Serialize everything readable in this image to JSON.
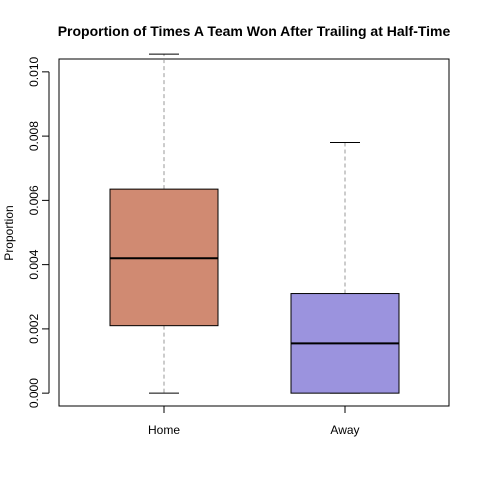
{
  "chart_data": {
    "type": "box",
    "title": "Proportion of Times A Team Won After Trailing at Half-Time",
    "xlabel": "",
    "ylabel": "Proportion",
    "ylim": [
      -0.0004,
      0.0104
    ],
    "yticks": [
      "0.000",
      "0.002",
      "0.004",
      "0.006",
      "0.008",
      "0.010"
    ],
    "grid": false,
    "categories": [
      "Home",
      "Away"
    ],
    "boxes": [
      {
        "category": "Home",
        "min": 0.0,
        "q1": 0.0021,
        "median": 0.0042,
        "q3": 0.00635,
        "max": 0.01055,
        "color": "#D08A72"
      },
      {
        "category": "Away",
        "min": 0.0,
        "q1": 0.0,
        "median": 0.00155,
        "q3": 0.0031,
        "max": 0.0078,
        "color": "#9B93DE"
      }
    ]
  }
}
